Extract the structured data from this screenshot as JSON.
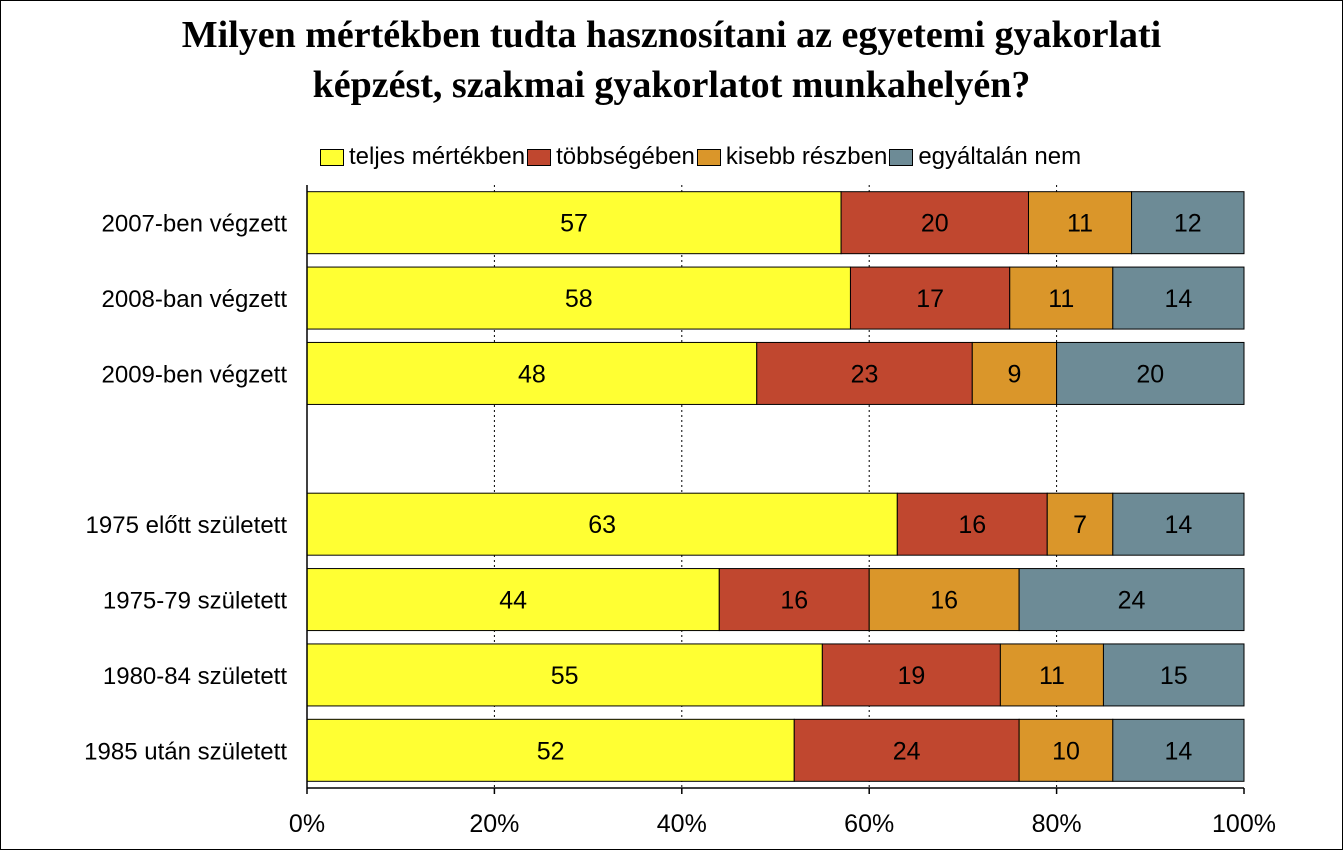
{
  "chart_data": {
    "type": "bar",
    "orientation": "horizontal",
    "stacked": "percent",
    "title": [
      "Milyen mértékben tudta hasznosítani az egyetemi gyakorlati",
      "képzést, szakmai gyakorlatot munkahelyén?"
    ],
    "categories": [
      "2007-ben végzett",
      "2008-ban végzett",
      "2009-ben végzett",
      "",
      "1975 előtt született",
      "1975-79 született",
      "1980-84 született",
      "1985 után született"
    ],
    "series": [
      {
        "name": "teljes mértékben",
        "color": "#ffff33",
        "values": [
          57,
          58,
          48,
          null,
          63,
          44,
          55,
          52
        ]
      },
      {
        "name": "többségében",
        "color": "#c0472f",
        "values": [
          20,
          17,
          23,
          null,
          16,
          16,
          19,
          24
        ]
      },
      {
        "name": "kisebb részben",
        "color": "#da962a",
        "values": [
          11,
          11,
          9,
          null,
          7,
          16,
          11,
          10
        ]
      },
      {
        "name": "egyáltalán nem",
        "color": "#6d8b96",
        "values": [
          12,
          14,
          20,
          null,
          14,
          24,
          15,
          14
        ]
      }
    ],
    "xlim": [
      0,
      100
    ],
    "xticks": [
      "0%",
      "20%",
      "40%",
      "60%",
      "80%",
      "100%"
    ],
    "grid": "vertical-dashed",
    "legend_position": "top"
  }
}
